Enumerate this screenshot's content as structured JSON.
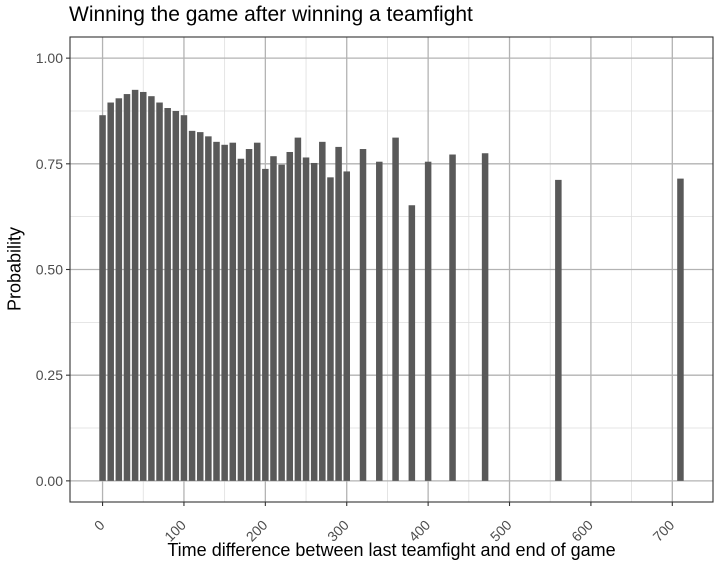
{
  "chart_data": {
    "type": "bar",
    "title": "Winning the game after winning a teamfight",
    "xlabel": "Time difference between last teamfight and end of game",
    "ylabel": "Probability",
    "xlim": [
      -40,
      750
    ],
    "ylim": [
      -0.05,
      1.05
    ],
    "xticks": [
      0,
      100,
      200,
      300,
      400,
      500,
      600,
      700
    ],
    "xtick_labels": [
      "0",
      "100",
      "200",
      "300",
      "400",
      "500",
      "600",
      "700"
    ],
    "yticks": [
      0,
      0.25,
      0.5,
      0.75,
      1.0
    ],
    "ytick_labels": [
      "0.00",
      "0.25",
      "0.50",
      "0.75",
      "1.00"
    ],
    "bar_width": 8,
    "bar_color": "#595959",
    "grid": true,
    "x": [
      0,
      10,
      20,
      30,
      40,
      50,
      60,
      70,
      80,
      90,
      100,
      110,
      120,
      130,
      140,
      150,
      160,
      170,
      180,
      190,
      200,
      210,
      220,
      230,
      240,
      250,
      260,
      270,
      280,
      290,
      300,
      320,
      340,
      360,
      380,
      400,
      430,
      470,
      560,
      710
    ],
    "values": [
      0.865,
      0.895,
      0.905,
      0.915,
      0.925,
      0.92,
      0.91,
      0.895,
      0.882,
      0.875,
      0.865,
      0.828,
      0.825,
      0.815,
      0.802,
      0.795,
      0.8,
      0.762,
      0.785,
      0.8,
      0.738,
      0.768,
      0.748,
      0.778,
      0.812,
      0.765,
      0.752,
      0.802,
      0.718,
      0.79,
      0.732,
      0.785,
      0.755,
      0.812,
      0.652,
      0.755,
      0.772,
      0.775,
      0.712,
      0.715
    ]
  }
}
